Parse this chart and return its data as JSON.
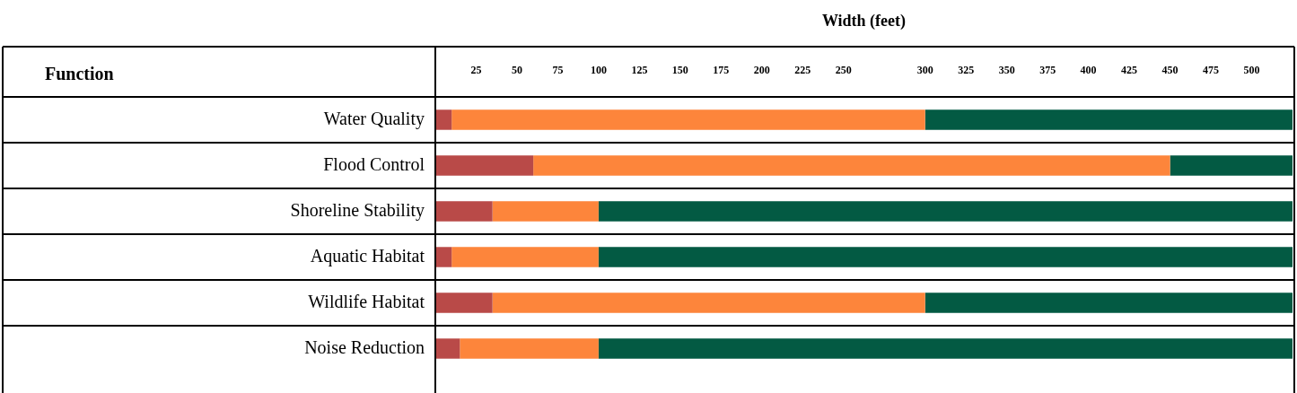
{
  "chart_data": {
    "type": "bar",
    "orientation": "horizontal",
    "stacked": true,
    "xlabel": "Width (feet)",
    "annotations": [
      "Function"
    ],
    "categories": [
      "Water Quality",
      "Flood Control",
      "Shoreline Stability",
      "Aquatic Habitat",
      "Wildlife Habitat",
      "Noise Reduction"
    ],
    "series": [
      {
        "color": "#b94a48",
        "values": [
          10,
          60,
          35,
          10,
          35,
          15
        ]
      },
      {
        "color": "#fd853b",
        "values": [
          290,
          390,
          65,
          90,
          265,
          85
        ]
      },
      {
        "color": "#035a43",
        "values": [
          225,
          75,
          425,
          425,
          225,
          425
        ]
      }
    ],
    "xlim": [
      0,
      525
    ],
    "xticks": [
      25,
      50,
      75,
      100,
      125,
      150,
      175,
      200,
      225,
      250,
      300,
      325,
      350,
      375,
      400,
      425,
      450,
      475,
      500
    ],
    "grid": false,
    "legend": false
  }
}
